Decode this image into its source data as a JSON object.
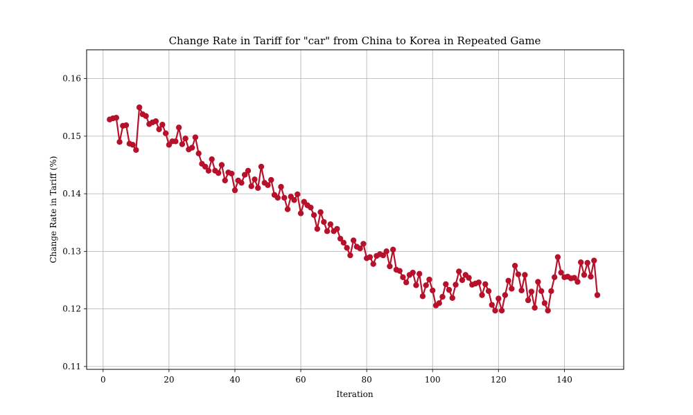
{
  "chart_data": {
    "type": "line",
    "title": "Change Rate in Tariff for \"car\" from China to Korea in Repeated Game",
    "xlabel": "Iteration",
    "ylabel": "Change Rate in Tariff (%)",
    "xlim": [
      -5,
      158
    ],
    "ylim": [
      0.1095,
      0.165
    ],
    "xticks": [
      0,
      20,
      40,
      60,
      80,
      100,
      120,
      140
    ],
    "yticks": [
      0.11,
      0.12,
      0.13,
      0.14,
      0.15,
      0.16
    ],
    "xtick_labels": [
      "0",
      "20",
      "40",
      "60",
      "80",
      "100",
      "120",
      "140"
    ],
    "ytick_labels": [
      "0.11",
      "0.12",
      "0.13",
      "0.14",
      "0.15",
      "0.16"
    ],
    "grid": true,
    "color": "#b7102a",
    "series": [
      {
        "name": "",
        "x": [
          2,
          3,
          4,
          5,
          6,
          7,
          8,
          9,
          10,
          11,
          12,
          13,
          14,
          15,
          16,
          17,
          18,
          19,
          20,
          21,
          22,
          23,
          24,
          25,
          26,
          27,
          28,
          29,
          30,
          31,
          32,
          33,
          34,
          35,
          36,
          37,
          38,
          39,
          40,
          41,
          42,
          43,
          44,
          45,
          46,
          47,
          48,
          49,
          50,
          51,
          52,
          53,
          54,
          55,
          56,
          57,
          58,
          59,
          60,
          61,
          62,
          63,
          64,
          65,
          66,
          67,
          68,
          69,
          70,
          71,
          72,
          73,
          74,
          75,
          76,
          77,
          78,
          79,
          80,
          81,
          82,
          83,
          84,
          85,
          86,
          87,
          88,
          89,
          90,
          91,
          92,
          93,
          94,
          95,
          96,
          97,
          98,
          99,
          100,
          101,
          102,
          103,
          104,
          105,
          106,
          107,
          108,
          109,
          110,
          111,
          112,
          113,
          114,
          115,
          116,
          117,
          118,
          119,
          120,
          121,
          122,
          123,
          124,
          125,
          126,
          127,
          128,
          129,
          130,
          131,
          132,
          133,
          134,
          135,
          136,
          137,
          138,
          139,
          140,
          141,
          142,
          143,
          144,
          145,
          146,
          147,
          148,
          149,
          150
        ],
        "y": [
          0.1529,
          0.1531,
          0.1532,
          0.149,
          0.1518,
          0.1519,
          0.1487,
          0.1485,
          0.1476,
          0.155,
          0.1538,
          0.1535,
          0.1521,
          0.1524,
          0.1526,
          0.1512,
          0.152,
          0.1505,
          0.1485,
          0.1491,
          0.1491,
          0.1515,
          0.1486,
          0.1496,
          0.1477,
          0.148,
          0.1498,
          0.147,
          0.1452,
          0.1447,
          0.144,
          0.146,
          0.144,
          0.1436,
          0.145,
          0.1423,
          0.1437,
          0.1435,
          0.1406,
          0.1423,
          0.1419,
          0.1433,
          0.144,
          0.1413,
          0.1425,
          0.141,
          0.1447,
          0.1419,
          0.1415,
          0.1424,
          0.1398,
          0.1393,
          0.1412,
          0.1393,
          0.1373,
          0.1395,
          0.1389,
          0.1399,
          0.1366,
          0.1386,
          0.138,
          0.1376,
          0.1363,
          0.1339,
          0.1368,
          0.1351,
          0.1335,
          0.1347,
          0.1335,
          0.1339,
          0.1322,
          0.1315,
          0.1306,
          0.1293,
          0.1319,
          0.1308,
          0.1305,
          0.1313,
          0.1288,
          0.129,
          0.1278,
          0.1292,
          0.1295,
          0.1293,
          0.13,
          0.1274,
          0.1303,
          0.1268,
          0.1266,
          0.1255,
          0.1246,
          0.1259,
          0.1263,
          0.1241,
          0.1261,
          0.1222,
          0.1241,
          0.1251,
          0.1232,
          0.1206,
          0.121,
          0.1221,
          0.1243,
          0.1233,
          0.1219,
          0.1242,
          0.1265,
          0.125,
          0.1259,
          0.1254,
          0.1242,
          0.1244,
          0.1246,
          0.1224,
          0.1243,
          0.1231,
          0.1207,
          0.1197,
          0.1218,
          0.1197,
          0.1224,
          0.1249,
          0.1235,
          0.1275,
          0.126,
          0.1232,
          0.1259,
          0.1215,
          0.123,
          0.1202,
          0.1247,
          0.1231,
          0.121,
          0.1197,
          0.1231,
          0.1255,
          0.129,
          0.1263,
          0.1255,
          0.1256,
          0.1253,
          0.1254,
          0.1247,
          0.1281,
          0.1259,
          0.128,
          0.1256,
          0.1284,
          0.1224
        ]
      }
    ]
  }
}
